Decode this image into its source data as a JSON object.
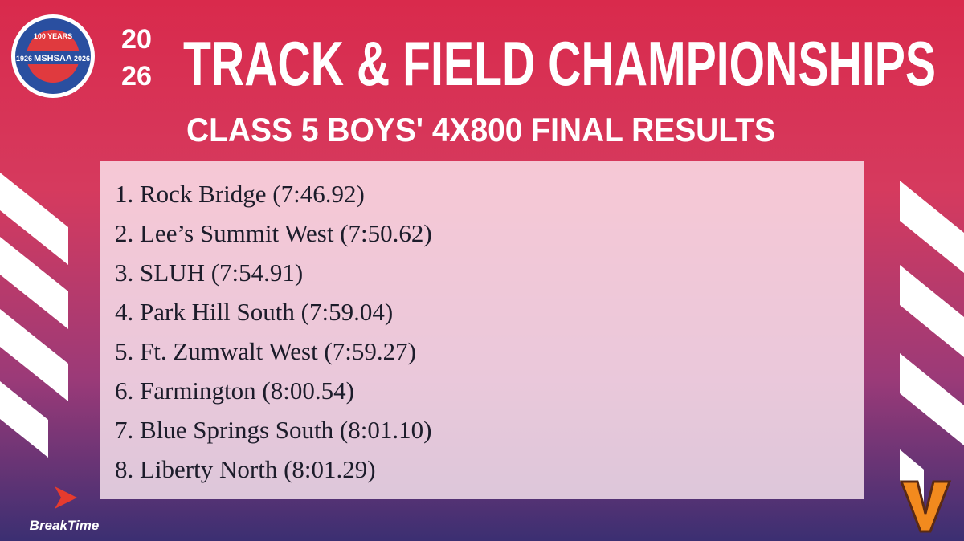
{
  "logo": {
    "top": "100 YEARS",
    "left_year": "1926",
    "right_year": "2026",
    "name": "MSHSAA"
  },
  "header": {
    "year_top": "20",
    "year_bottom": "26",
    "title": "TRACK & FIELD CHAMPIONSHIPS",
    "subtitle": "CLASS 5 BOYS' 4X800 FINAL RESULTS"
  },
  "results": [
    "1. Rock Bridge (7:46.92)",
    "2. Lee’s Summit West (7:50.62)",
    "3. SLUH (7:54.91)",
    "4. Park Hill South (7:59.04)",
    "5. Ft. Zumwalt West (7:59.27)",
    "6. Farmington (8:00.54)",
    "7. Blue Springs South (8:01.10)",
    "8. Liberty North (8:01.29)"
  ],
  "sponsor": "BreakTime"
}
